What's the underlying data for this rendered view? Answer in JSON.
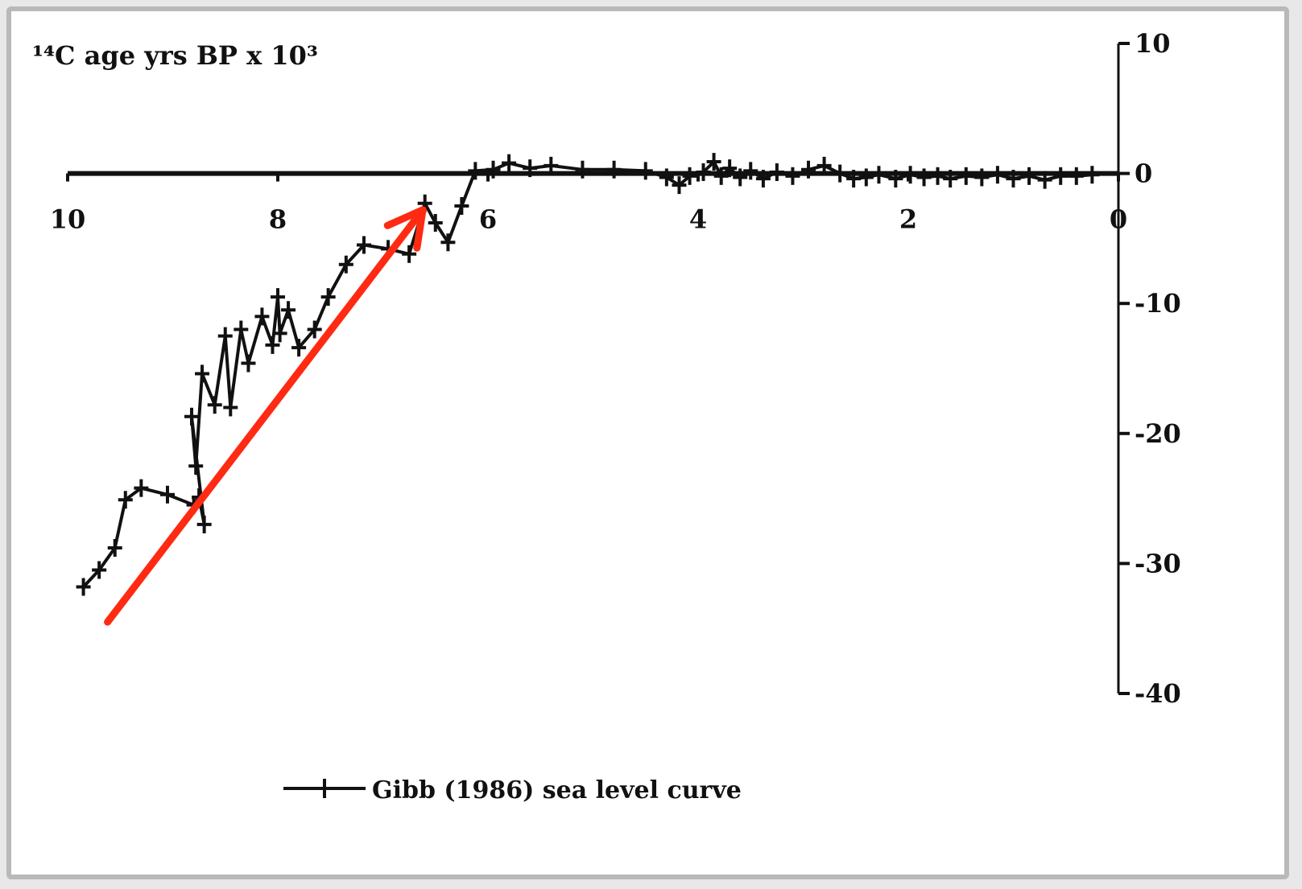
{
  "chart_data": {
    "type": "line",
    "title": "¹⁴C age yrs BP x 10³",
    "xlabel": "",
    "ylabel": "",
    "xlim": [
      10,
      0
    ],
    "ylim": [
      -40,
      10
    ],
    "x_ticks": [
      "10",
      "8",
      "6",
      "4",
      "2",
      "0"
    ],
    "y_ticks": [
      "10",
      "0",
      "-10",
      "-20",
      "-30",
      "-40"
    ],
    "legend": {
      "position": "bottom",
      "label": "Gibb (1986) sea level curve"
    },
    "annotation": {
      "type": "arrow",
      "color": "#ff2a12",
      "from": [
        9.62,
        -34.5
      ],
      "to": [
        6.62,
        -2.8
      ]
    },
    "series": [
      {
        "name": "Gibb (1986) sea level curve",
        "color": "#111111",
        "marker": "plus",
        "points": [
          [
            9.85,
            -31.8
          ],
          [
            9.7,
            -30.5
          ],
          [
            9.55,
            -28.8
          ],
          [
            9.45,
            -25.1
          ],
          [
            9.3,
            -24.2
          ],
          [
            9.05,
            -24.7
          ],
          [
            8.8,
            -25.5
          ],
          [
            8.75,
            -24.9
          ],
          [
            8.7,
            -27.0
          ],
          [
            8.82,
            -18.7
          ],
          [
            8.78,
            -22.5
          ],
          [
            8.72,
            -15.4
          ],
          [
            8.6,
            -17.8
          ],
          [
            8.5,
            -12.5
          ],
          [
            8.45,
            -18.0
          ],
          [
            8.35,
            -12.0
          ],
          [
            8.28,
            -14.6
          ],
          [
            8.15,
            -11.0
          ],
          [
            8.05,
            -13.2
          ],
          [
            8.0,
            -9.5
          ],
          [
            7.98,
            -12.3
          ],
          [
            7.9,
            -10.5
          ],
          [
            7.8,
            -13.4
          ],
          [
            7.65,
            -12.0
          ],
          [
            7.52,
            -9.5
          ],
          [
            7.35,
            -7.0
          ],
          [
            7.18,
            -5.5
          ],
          [
            6.95,
            -5.8
          ],
          [
            6.75,
            -6.2
          ],
          [
            6.6,
            -2.3
          ],
          [
            6.5,
            -3.8
          ],
          [
            6.38,
            -5.3
          ],
          [
            6.25,
            -2.5
          ],
          [
            6.12,
            0.2
          ],
          [
            5.95,
            0.3
          ],
          [
            5.8,
            0.8
          ],
          [
            5.6,
            0.4
          ],
          [
            5.4,
            0.6
          ],
          [
            5.1,
            0.3
          ],
          [
            4.8,
            0.3
          ],
          [
            4.5,
            0.2
          ],
          [
            4.3,
            -0.3
          ],
          [
            4.18,
            -0.9
          ],
          [
            4.08,
            -0.2
          ],
          [
            3.95,
            0.1
          ],
          [
            3.85,
            0.9
          ],
          [
            3.78,
            -0.2
          ],
          [
            3.7,
            0.4
          ],
          [
            3.6,
            -0.3
          ],
          [
            3.5,
            0.2
          ],
          [
            3.38,
            -0.4
          ],
          [
            3.25,
            0.1
          ],
          [
            3.1,
            -0.2
          ],
          [
            2.95,
            0.3
          ],
          [
            2.8,
            0.6
          ],
          [
            2.65,
            0.0
          ],
          [
            2.52,
            -0.4
          ],
          [
            2.4,
            -0.3
          ],
          [
            2.28,
            -0.1
          ],
          [
            2.12,
            -0.4
          ],
          [
            1.98,
            -0.1
          ],
          [
            1.85,
            -0.3
          ],
          [
            1.72,
            -0.2
          ],
          [
            1.6,
            -0.4
          ],
          [
            1.45,
            -0.2
          ],
          [
            1.3,
            -0.3
          ],
          [
            1.15,
            -0.1
          ],
          [
            1.0,
            -0.4
          ],
          [
            0.85,
            -0.2
          ],
          [
            0.7,
            -0.5
          ],
          [
            0.55,
            -0.2
          ],
          [
            0.4,
            -0.2
          ],
          [
            0.25,
            -0.1
          ]
        ]
      }
    ]
  }
}
